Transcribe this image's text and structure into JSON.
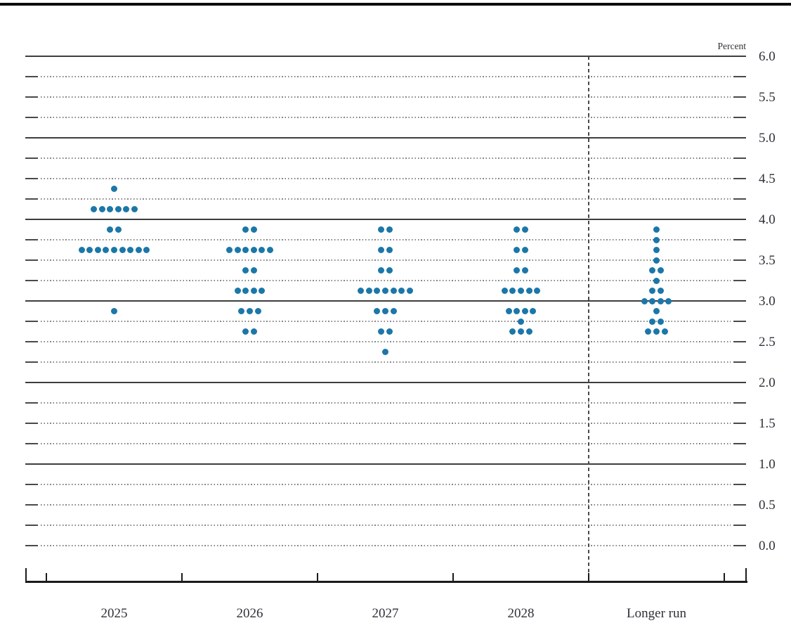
{
  "colors": {
    "dot": "#1b77a8",
    "solid_gridline": "#3d3d3d",
    "dotted_gridline": "#858585",
    "axis": "#1a1a1a",
    "text": "#2e3138"
  },
  "axis": {
    "unit_label": "Percent",
    "y_tick_labels": [
      "6.0",
      "5.5",
      "5.0",
      "4.5",
      "4.0",
      "3.5",
      "3.0",
      "2.5",
      "2.0",
      "1.5",
      "1.0",
      "0.5",
      "0.0"
    ]
  },
  "chart_data": {
    "type": "scatter",
    "subtype": "fomc-dot-plot",
    "unit": "Percent",
    "categories": [
      "2025",
      "2026",
      "2027",
      "2028",
      "Longer run"
    ],
    "ylim": [
      0.0,
      6.0
    ],
    "y_label_step": 0.5,
    "grid_interval": 0.25,
    "grid": "dotted lines every 0.25 with edge ticks; solid lines at integers; dashed vertical separator before Longer run",
    "legend_position": "none",
    "columns": [
      {
        "category": "2025",
        "dots": [
          {
            "rate": 4.375,
            "count": 1
          },
          {
            "rate": 4.125,
            "count": 6
          },
          {
            "rate": 3.875,
            "count": 2
          },
          {
            "rate": 3.625,
            "count": 9
          },
          {
            "rate": 2.875,
            "count": 1
          }
        ]
      },
      {
        "category": "2026",
        "dots": [
          {
            "rate": 3.875,
            "count": 2
          },
          {
            "rate": 3.625,
            "count": 6
          },
          {
            "rate": 3.375,
            "count": 2
          },
          {
            "rate": 3.125,
            "count": 4
          },
          {
            "rate": 2.875,
            "count": 3
          },
          {
            "rate": 2.625,
            "count": 2
          }
        ]
      },
      {
        "category": "2027",
        "dots": [
          {
            "rate": 3.875,
            "count": 2
          },
          {
            "rate": 3.625,
            "count": 2
          },
          {
            "rate": 3.375,
            "count": 2
          },
          {
            "rate": 3.125,
            "count": 7
          },
          {
            "rate": 2.875,
            "count": 3
          },
          {
            "rate": 2.625,
            "count": 2
          },
          {
            "rate": 2.375,
            "count": 1
          }
        ]
      },
      {
        "category": "2028",
        "dots": [
          {
            "rate": 3.875,
            "count": 2
          },
          {
            "rate": 3.625,
            "count": 2
          },
          {
            "rate": 3.375,
            "count": 2
          },
          {
            "rate": 3.125,
            "count": 5
          },
          {
            "rate": 2.875,
            "count": 4
          },
          {
            "rate": 2.75,
            "count": 1
          },
          {
            "rate": 2.625,
            "count": 3
          }
        ]
      },
      {
        "category": "Longer run",
        "dots": [
          {
            "rate": 3.875,
            "count": 1
          },
          {
            "rate": 3.75,
            "count": 1
          },
          {
            "rate": 3.625,
            "count": 1
          },
          {
            "rate": 3.5,
            "count": 1
          },
          {
            "rate": 3.375,
            "count": 2
          },
          {
            "rate": 3.25,
            "count": 1
          },
          {
            "rate": 3.125,
            "count": 2
          },
          {
            "rate": 3.0,
            "count": 4
          },
          {
            "rate": 2.875,
            "count": 1
          },
          {
            "rate": 2.75,
            "count": 2
          },
          {
            "rate": 2.625,
            "count": 3
          }
        ]
      }
    ]
  }
}
